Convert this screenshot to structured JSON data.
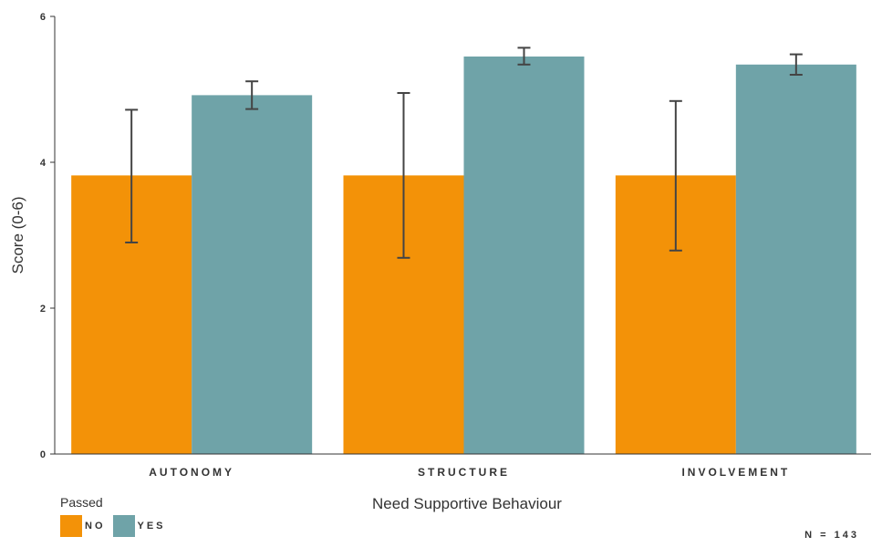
{
  "chart_data": {
    "type": "bar",
    "title": "",
    "xlabel": "Need Supportive Behaviour",
    "ylabel": "Score (0-6)",
    "ylim": [
      0,
      6
    ],
    "yticks": [
      "0",
      "2",
      "4",
      "6"
    ],
    "ytick_values": [
      0,
      2,
      4,
      6
    ],
    "categories": [
      "AUTONOMY",
      "STRUCTURE",
      "INVOLVEMENT"
    ],
    "legend_title": "Passed",
    "legend_position": "bottom-left",
    "series": [
      {
        "name": "NO",
        "color": "#F39208",
        "values": [
          3.82,
          3.82,
          3.82
        ],
        "error_low": [
          2.9,
          2.69,
          2.79
        ],
        "error_high": [
          4.72,
          4.95,
          4.84
        ]
      },
      {
        "name": "YES",
        "color": "#6FA3A8",
        "values": [
          4.92,
          5.45,
          5.34
        ],
        "error_low": [
          4.73,
          5.34,
          5.2
        ],
        "error_high": [
          5.11,
          5.57,
          5.48
        ]
      }
    ],
    "note": "N = 143",
    "grid": false
  }
}
